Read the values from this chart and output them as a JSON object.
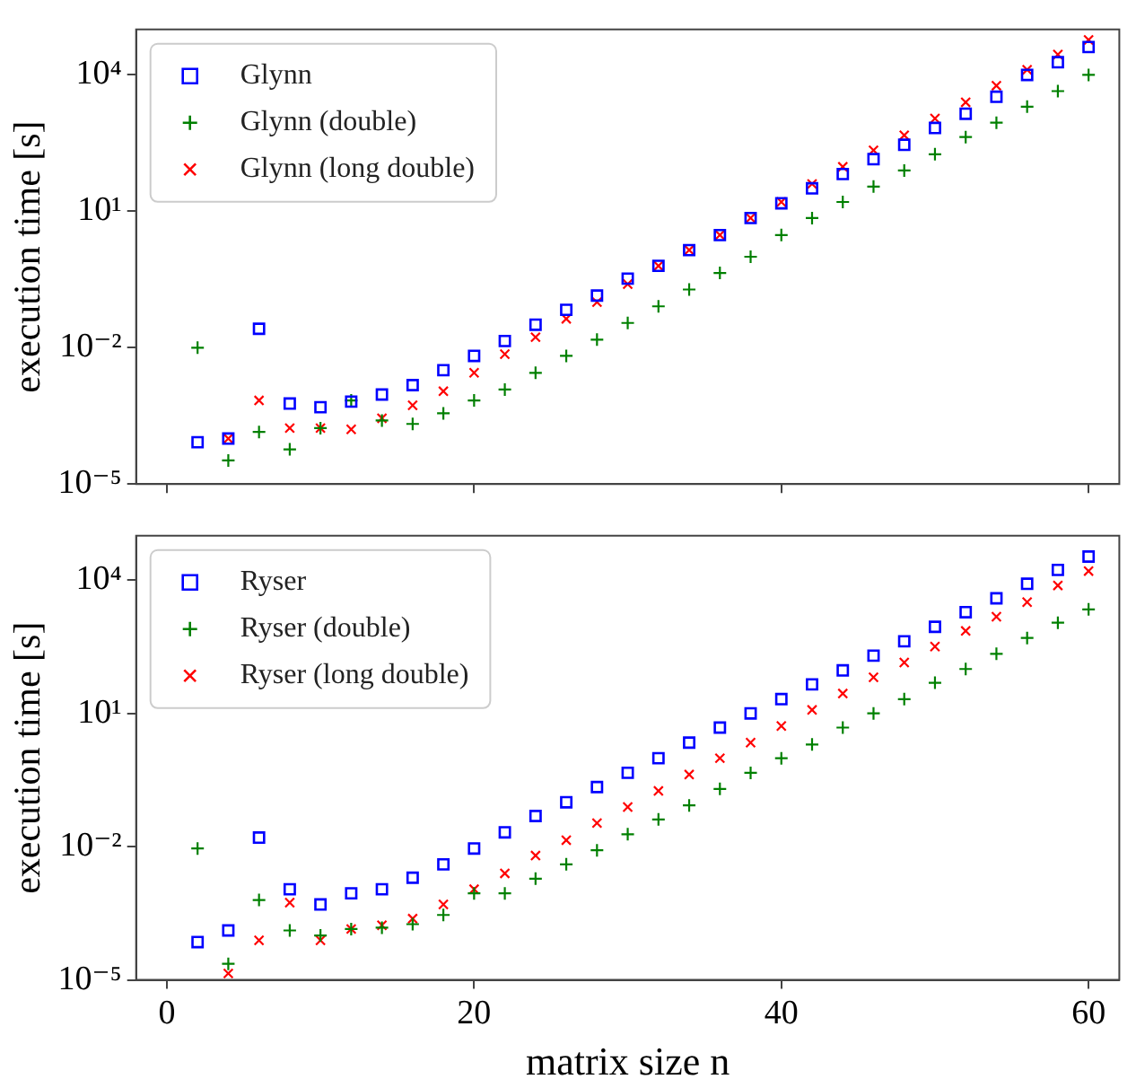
{
  "chart_data": [
    {
      "type": "scatter",
      "ylabel": "execution time [s]",
      "x": [
        2,
        4,
        6,
        8,
        10,
        12,
        14,
        16,
        18,
        20,
        22,
        24,
        26,
        28,
        30,
        32,
        34,
        36,
        38,
        40,
        42,
        44,
        46,
        48,
        50,
        52,
        54,
        56,
        58,
        60
      ],
      "series": [
        {
          "name": "Glynn",
          "color": "#0000ff",
          "marker": "square",
          "values": [
            8.3e-05,
            0.0001,
            0.026,
            0.00059,
            0.00049,
            0.00065,
            0.00093,
            0.0015,
            0.0032,
            0.0066,
            0.014,
            0.032,
            0.068,
            0.14,
            0.33,
            0.63,
            1.4,
            3.0,
            7.1,
            15,
            32,
            66,
            140,
            290,
            680,
            1400,
            3300,
            10000,
            19000,
            41000
          ]
        },
        {
          "name": "Glynn (double)",
          "color": "#008000",
          "marker": "cross",
          "values": [
            0.01,
            3.3e-05,
            0.00014,
            5.8e-05,
            0.00017,
            0.00069,
            0.00025,
            0.00021,
            0.00036,
            0.00069,
            0.0012,
            0.0028,
            0.0066,
            0.015,
            0.035,
            0.081,
            0.19,
            0.44,
            1.0,
            3.0,
            7.1,
            16,
            35,
            79,
            180,
            430,
            890,
            2000,
            4400,
            10000
          ]
        },
        {
          "name": "Glynn (long double)",
          "color": "#ff0000",
          "marker": "x",
          "values": [
            null,
            0.0001,
            0.00069,
            0.00017,
            0.00017,
            0.00016,
            0.00028,
            0.00054,
            0.0011,
            0.0028,
            0.0072,
            0.017,
            0.043,
            0.1,
            0.25,
            0.63,
            1.4,
            3.0,
            7.1,
            16,
            40,
            95,
            220,
            470,
            1100,
            2500,
            5800,
            13000,
            28000,
            59000
          ]
        }
      ],
      "log": "y",
      "xlim": [
        -2,
        62
      ],
      "xticks": [
        0,
        20,
        40,
        60
      ],
      "ylim": [
        1e-05,
        100000.0
      ],
      "yticks": [
        {
          "value": 1e-05,
          "label": "10⁻⁵"
        },
        {
          "value": 0.01,
          "label": "10⁻²"
        },
        {
          "value": 10,
          "label": "10¹"
        },
        {
          "value": 10000,
          "label": "10⁴"
        }
      ],
      "tick_labels": "y",
      "legend": "top left",
      "grid": false
    },
    {
      "type": "scatter",
      "xlabel": "matrix size n",
      "ylabel": "execution time [s]",
      "x": [
        2,
        4,
        6,
        8,
        10,
        12,
        14,
        16,
        18,
        20,
        22,
        24,
        26,
        28,
        30,
        32,
        34,
        36,
        38,
        40,
        42,
        44,
        46,
        48,
        50,
        52,
        54,
        56,
        58,
        60
      ],
      "series": [
        {
          "name": "Ryser",
          "color": "#0000ff",
          "marker": "square",
          "values": [
            7.1e-05,
            0.00013,
            0.016,
            0.0011,
            0.0005,
            0.00089,
            0.0011,
            0.002,
            0.004,
            0.0091,
            0.021,
            0.049,
            0.1,
            0.22,
            0.46,
            0.98,
            2.2,
            4.8,
            10,
            21,
            45,
            93,
            200,
            420,
            890,
            1900,
            3900,
            8300,
            17000,
            34000
          ]
        },
        {
          "name": "Ryser (double)",
          "color": "#008000",
          "marker": "cross",
          "values": [
            0.0091,
            2.3e-05,
            0.00063,
            0.00013,
            0.0001,
            0.00014,
            0.00015,
            0.00018,
            0.00029,
            0.00089,
            0.00089,
            0.0019,
            0.004,
            0.0083,
            0.019,
            0.041,
            0.085,
            0.2,
            0.46,
            0.98,
            2.0,
            4.8,
            10,
            21,
            49,
            100,
            220,
            500,
            1100,
            2200
          ]
        },
        {
          "name": "Ryser (long double)",
          "color": "#ff0000",
          "marker": "x",
          "values": [
            null,
            1.4e-05,
            7.8e-05,
            0.00055,
            7.8e-05,
            0.00014,
            0.00017,
            0.00024,
            0.0005,
            0.0011,
            0.0025,
            0.0063,
            0.014,
            0.034,
            0.078,
            0.18,
            0.42,
            0.98,
            2.2,
            5.2,
            12,
            28,
            65,
            140,
            320,
            720,
            1500,
            3200,
            7600,
            16000
          ]
        }
      ],
      "log": "y",
      "xlim": [
        -2,
        62
      ],
      "xticks": [
        0,
        20,
        40,
        60
      ],
      "ylim": [
        1e-05,
        100000.0
      ],
      "yticks": [
        {
          "value": 1e-05,
          "label": "10⁻⁵"
        },
        {
          "value": 0.01,
          "label": "10⁻²"
        },
        {
          "value": 10,
          "label": "10¹"
        },
        {
          "value": 10000,
          "label": "10⁴"
        }
      ],
      "legend": "top left",
      "grid": false
    }
  ]
}
